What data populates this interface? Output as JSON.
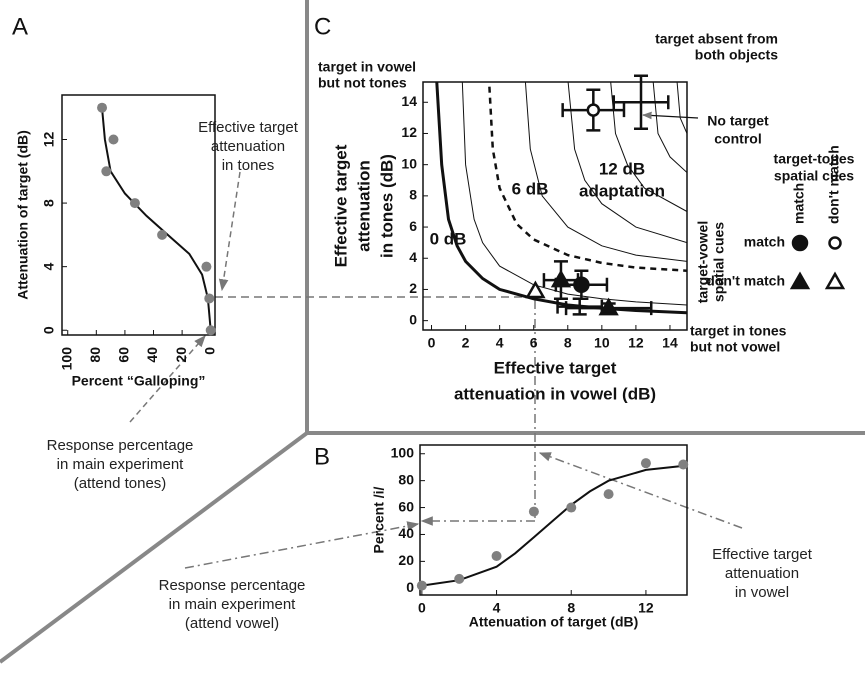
{
  "chart_data": [
    {
      "type": "scatter",
      "panel_label": "A",
      "xlabel": "Percent “Galloping”",
      "ylabel": "Attenuation of target (dB)",
      "x": [
        76,
        73,
        68,
        53,
        34,
        3,
        1,
        0
      ],
      "y": [
        14,
        10,
        12,
        8,
        6,
        4,
        2,
        0
      ],
      "color": "#808080",
      "fit": {
        "x": [
          76,
          74,
          70,
          60,
          45,
          30,
          15,
          6,
          2,
          1,
          0
        ],
        "y": [
          14,
          12,
          10,
          8.6,
          7.2,
          6,
          4.8,
          3.5,
          2,
          1,
          0
        ]
      },
      "xlim": [
        104,
        -3
      ],
      "ylim": [
        -0.3,
        14.8
      ],
      "xticks": [
        100,
        80,
        60,
        40,
        20,
        0
      ],
      "yticks": [
        0,
        4,
        8,
        12
      ]
    },
    {
      "type": "scatter",
      "panel_label": "B",
      "xlabel": "Attenuation of target (dB)",
      "ylabel": "Percent /i/",
      "x": [
        0,
        2,
        4,
        6,
        8,
        10,
        12,
        14
      ],
      "y": [
        2,
        7,
        24,
        57,
        60,
        70,
        93,
        92
      ],
      "color": "#808080",
      "fit": {
        "x": [
          0,
          2,
          4,
          5,
          6,
          7,
          8,
          9,
          10,
          12,
          14
        ],
        "y": [
          2,
          6,
          16,
          26,
          38,
          50,
          62,
          72,
          80,
          88,
          91
        ]
      },
      "xlim": [
        -0.1,
        14.2
      ],
      "ylim": [
        -5,
        106.5
      ],
      "xticks": [
        0,
        4,
        8,
        12
      ],
      "yticks": [
        0,
        20,
        40,
        60,
        80,
        100
      ]
    },
    {
      "type": "contour",
      "panel_label": "C",
      "xlabel": [
        "Effective target",
        "attenuation in vowel (dB)"
      ],
      "ylabel": [
        "Effective target",
        "attenuation",
        "in tones (dB)"
      ],
      "xlim": [
        -0.5,
        15
      ],
      "ylim": [
        -0.6,
        15.3
      ],
      "xticks": [
        0,
        2,
        4,
        6,
        8,
        10,
        12,
        14
      ],
      "yticks": [
        0,
        2,
        4,
        6,
        8,
        10,
        12,
        14
      ],
      "curves": [
        {
          "style": "thick",
          "x": [
            0.3,
            0.6,
            1,
            1.5,
            2,
            3,
            4,
            6,
            8,
            10,
            12,
            15
          ],
          "y": [
            15.5,
            10,
            6.5,
            4.8,
            3.8,
            2.7,
            2,
            1.4,
            1,
            0.8,
            0.65,
            0.5
          ]
        },
        {
          "style": "thin",
          "x": [
            1.8,
            2,
            2.5,
            3,
            4,
            6,
            8,
            10,
            12,
            15
          ],
          "y": [
            15.5,
            10,
            6.5,
            5,
            3.5,
            2.3,
            1.7,
            1.4,
            1.2,
            1
          ]
        },
        {
          "style": "dashed",
          "x": [
            3.4,
            3.6,
            4,
            5,
            6,
            8,
            10,
            12,
            15
          ],
          "y": [
            15,
            11,
            8.5,
            6.2,
            5.2,
            4.2,
            3.7,
            3.4,
            3.2
          ]
        },
        {
          "style": "thin",
          "x": [
            5.5,
            5.8,
            6.5,
            8,
            10,
            12,
            15
          ],
          "y": [
            15.5,
            11,
            8,
            6,
            4.8,
            4.2,
            3.8
          ]
        },
        {
          "style": "thin",
          "x": [
            8,
            8.4,
            9,
            10,
            12,
            15
          ],
          "y": [
            15.5,
            11,
            9,
            7.5,
            6,
            5
          ]
        },
        {
          "style": "thin",
          "x": [
            10.5,
            10.8,
            11.5,
            12.5,
            15
          ],
          "y": [
            15.5,
            12,
            10,
            8.5,
            7
          ]
        },
        {
          "style": "thin",
          "x": [
            13,
            13.3,
            14,
            15
          ],
          "y": [
            15.5,
            12,
            10.5,
            9.5
          ]
        },
        {
          "style": "thin",
          "x": [
            14.4,
            14.6,
            15
          ],
          "y": [
            15.5,
            13,
            12
          ]
        }
      ],
      "points": [
        {
          "marker": "circle-filled",
          "x": 8.8,
          "y": 2.3,
          "xerr": 1.5,
          "yerr": 0.9
        },
        {
          "marker": "triangle-filled",
          "x": 7.6,
          "y": 2.6,
          "xerr": 1,
          "yerr": 1.2
        },
        {
          "marker": "triangle-filled",
          "x": 10.4,
          "y": 0.8,
          "xerr": 2.5,
          "yerr": 0.3
        },
        {
          "marker": "none",
          "x": 8.7,
          "y": 0.9,
          "xerr": 1.3,
          "yerr": 0.5
        },
        {
          "marker": "triangle-open",
          "x": 6.1,
          "y": 1.9,
          "xerr": 0,
          "yerr": 0
        },
        {
          "marker": "circle-open",
          "x": 9.5,
          "y": 13.5,
          "xerr": 1.8,
          "yerr": 1.3
        },
        {
          "marker": "none",
          "x": 12.3,
          "y": 14,
          "xerr": 1.6,
          "yerr": 1.7
        }
      ],
      "corner_labels": [
        [
          "target in vowel",
          "but not tones"
        ],
        [
          "target absent from",
          "both objects"
        ],
        [
          "target in tones",
          "but not vowel"
        ]
      ],
      "contour_labels": [
        [
          "0 dB"
        ],
        [
          "6 dB"
        ],
        [
          "12 dB",
          "adaptation"
        ]
      ],
      "control_label": [
        "No target",
        "control"
      ],
      "legend": {
        "col_title": [
          "target-tones",
          "spatial cues"
        ],
        "row_title": [
          "target-vowel",
          "spatial cues"
        ],
        "cols": [
          "match",
          "don't match"
        ],
        "rows": [
          "match",
          "don't match"
        ],
        "markers": [
          [
            "circle-filled",
            "circle-open"
          ],
          [
            "triangle-filled",
            "triangle-open"
          ]
        ]
      }
    }
  ],
  "annotations": [
    [
      "Effective target",
      "attenuation",
      "in tones"
    ],
    [
      "Response percentage",
      "in main experiment",
      "(attend tones)"
    ],
    [
      "Response percentage",
      "in main experiment",
      "(attend vowel)"
    ],
    [
      "Effective target",
      "attenuation",
      "in vowel"
    ]
  ]
}
